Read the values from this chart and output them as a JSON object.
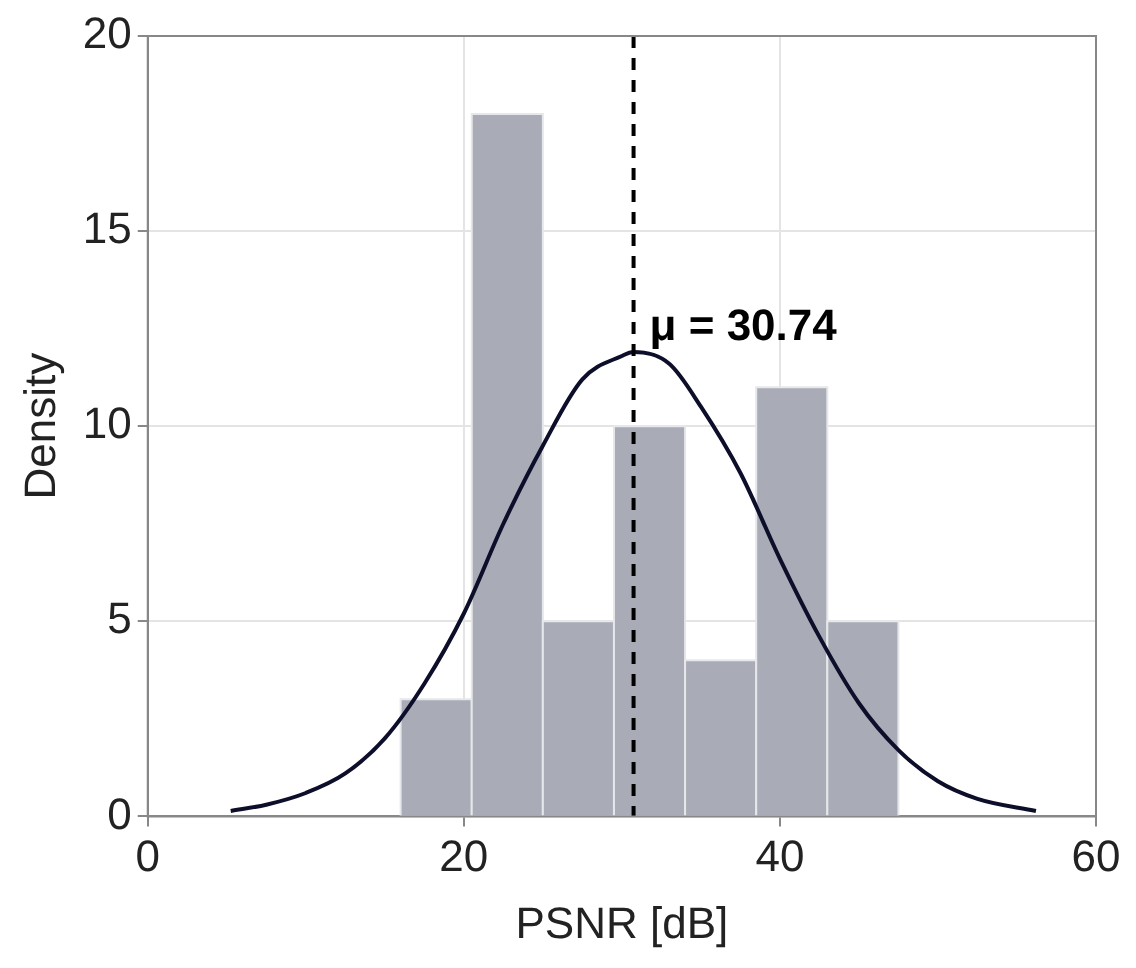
{
  "chart_data": {
    "type": "histogram",
    "xlabel": "PSNR [dB]",
    "ylabel": "Density",
    "series": [
      {
        "bins": [
          16.0,
          20.5,
          25.0,
          29.5,
          34.0,
          38.5,
          43.0,
          47.5
        ],
        "values": [
          3,
          18,
          5,
          10,
          4,
          11,
          5
        ],
        "color": "#a9acb6"
      },
      {
        "type": "line",
        "color": "#0d0f2a",
        "x": [
          5.25,
          7.5,
          10,
          12.5,
          15,
          17.5,
          20,
          22.5,
          25,
          27.5,
          30,
          30.74,
          33,
          35,
          37.5,
          40,
          42.5,
          45,
          47.5,
          50,
          52.5,
          56.2
        ],
        "values": [
          0.14,
          0.3,
          0.6,
          1.1,
          2.0,
          3.4,
          5.2,
          7.5,
          9.5,
          11.2,
          11.8,
          11.9,
          11.6,
          10.5,
          8.8,
          6.6,
          4.6,
          2.9,
          1.7,
          0.9,
          0.45,
          0.14
        ]
      }
    ],
    "ref_lines": [
      {
        "axis": "x",
        "value": 30.74,
        "label": "μ = 30.74",
        "color": "#000000",
        "line_style": "dashed"
      }
    ],
    "xlim": [
      0,
      60
    ],
    "xticks": [
      0,
      20,
      40,
      60
    ],
    "ylim": [
      0,
      20
    ],
    "yticks": [
      0,
      5,
      10,
      15,
      20
    ],
    "grid": true,
    "legend": false,
    "marker": "none",
    "line_style": "solid"
  }
}
